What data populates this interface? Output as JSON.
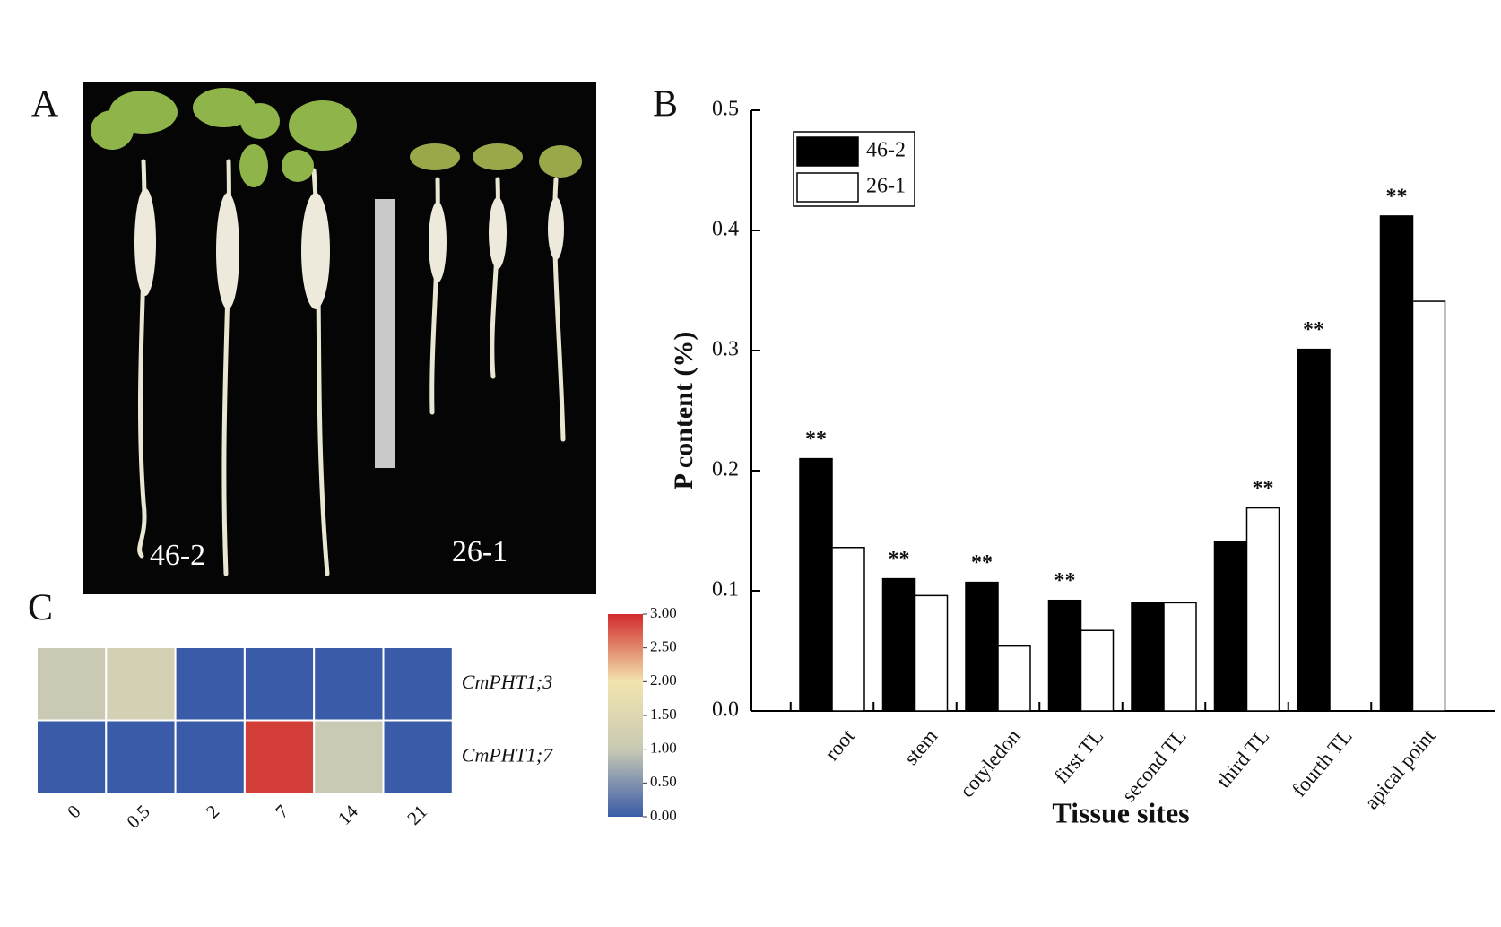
{
  "chart_data": [
    {
      "type": "photo",
      "panel_label": "A",
      "labels": [
        "46-2",
        "26-1"
      ]
    },
    {
      "type": "bar",
      "panel_label": "B",
      "y_label": "P content (%)",
      "x_label": "Tissue sites",
      "categories": [
        "root",
        "stem",
        "cotyledon",
        "first TL",
        "second TL",
        "third TL",
        "fourth TL",
        "apical point"
      ],
      "series": [
        {
          "name": "46-2",
          "color": "#000000",
          "values": [
            0.21,
            0.11,
            0.107,
            0.092,
            0.09,
            0.141,
            0.301,
            0.412
          ],
          "significance": [
            "**",
            "**",
            "**",
            "**",
            null,
            null,
            "**",
            "**"
          ]
        },
        {
          "name": "26-1",
          "color": "#ffffff",
          "values": [
            0.136,
            0.096,
            0.054,
            0.067,
            0.09,
            0.169,
            null,
            0.341
          ],
          "significance": [
            null,
            null,
            null,
            null,
            null,
            "**",
            null,
            null
          ]
        }
      ],
      "ylim": [
        0,
        0.5
      ],
      "yticks": [
        {
          "value": 0,
          "label": "0.0"
        },
        0.1,
        0.2,
        0.3,
        0.4,
        0.5
      ],
      "legend": "upper left"
    },
    {
      "type": "heatmap",
      "panel_label": "C",
      "rows": [
        "CmPHT1;3",
        "CmPHT1;7"
      ],
      "columns": [
        "0",
        "0.5",
        "2",
        "7",
        "14",
        "21"
      ],
      "values": [
        [
          1.0,
          1.25,
          0,
          0,
          0,
          0
        ],
        [
          0,
          0,
          0,
          2.9,
          1.0,
          0
        ]
      ],
      "colormap": [
        "#3a5ca8",
        "#c9c9b4",
        "#f2e4ae",
        "#d12b2b"
      ],
      "clim": [
        0,
        3
      ],
      "cticks": [
        {
          "value": 0,
          "label": "0.00"
        },
        {
          "value": 0.5,
          "label": "0.50"
        },
        {
          "value": 1,
          "label": "1.00"
        },
        {
          "value": 1.5,
          "label": "1.50"
        },
        {
          "value": 2,
          "label": "2.00"
        },
        {
          "value": 2.5,
          "label": "2.50"
        },
        {
          "value": 3,
          "label": "3.00"
        }
      ]
    }
  ]
}
